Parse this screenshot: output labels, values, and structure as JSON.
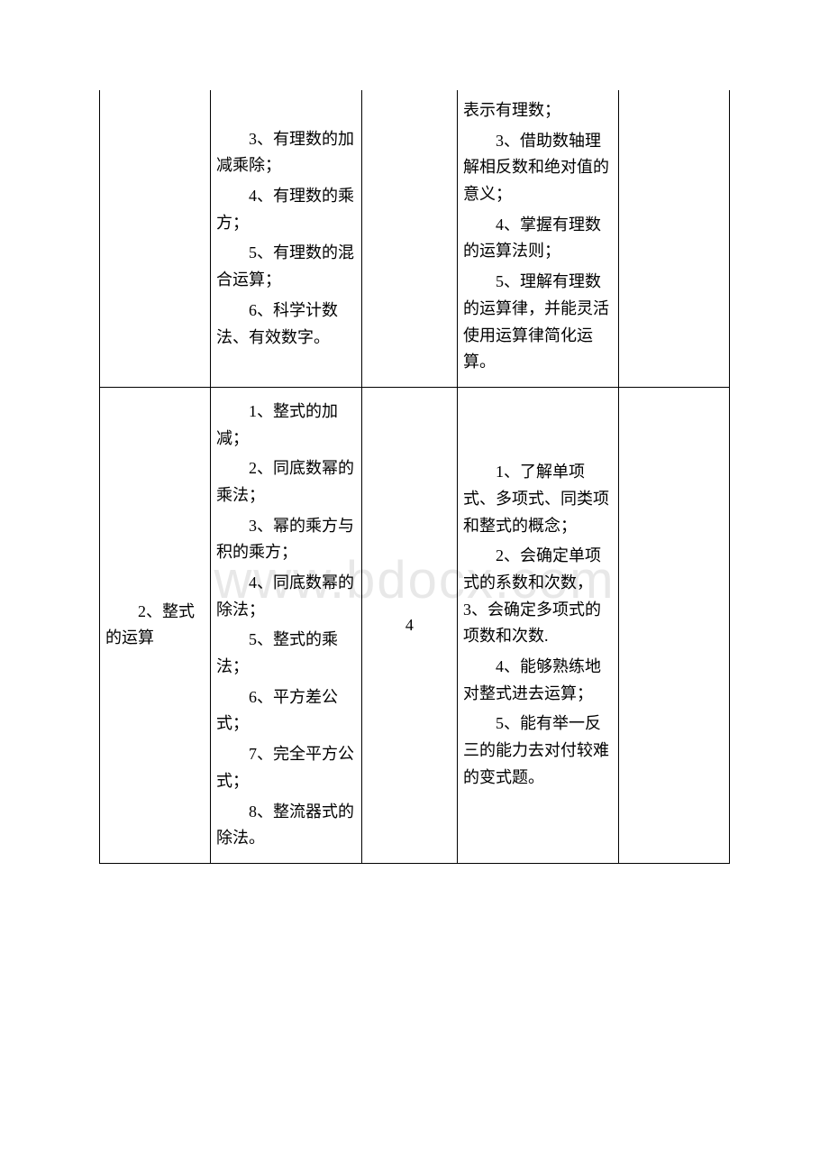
{
  "watermark": "www.bdocx.com",
  "table": {
    "rows": [
      {
        "col1": "",
        "col2_items": [
          "3、有理数的加减乘除；",
          "4、有理数的乘方；",
          "5、有理数的混合运算；",
          "6、科学计数法、有效数字。"
        ],
        "col3": "",
        "col4_items_pre": "表示有理数；",
        "col4_items": [
          "3、借助数轴理解相反数和绝对值的意义；",
          "4、掌握有理数的运算法则；",
          "5、理解有理数的运算律，并能灵活使用运算律简化运算。"
        ],
        "col5": ""
      },
      {
        "col1": "2、整式的运算",
        "col2_items": [
          "1、整式的加减；",
          "2、同底数幂的乘法；",
          "3、幂的乘方与积的乘方；",
          "4、同底数幂的除法；",
          "5、整式的乘法；",
          "6、平方差公式；",
          "7、完全平方公式；",
          "8、整流器式的除法。"
        ],
        "col3": "4",
        "col4_items": [
          "1、了解单项式、多项式、同类项和整式的概念；",
          "2、会确定单项式的系数和次数，3、会确定多项式的项数和次数.",
          "4、能够熟练地对整式进去运算；",
          "5、能有举一反三的能力去对付较难的变式题。"
        ],
        "col5": ""
      }
    ]
  }
}
